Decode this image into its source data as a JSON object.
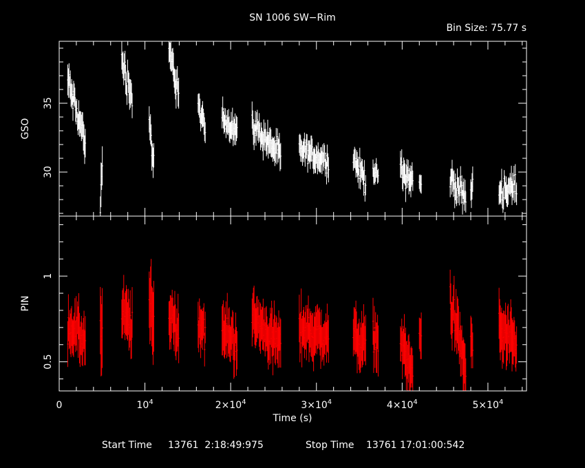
{
  "header": {
    "title": "SN 1006 SW−Rim",
    "bin_size": "Bin Size: 75.77 s"
  },
  "footer": {
    "start_label": "Start Time",
    "start_value": "13761  2:18:49:975",
    "stop_label": "Stop Time",
    "stop_value": "13761 17:01:00:542"
  },
  "colors": {
    "gso": "#ffffff",
    "pin": "#ff0000",
    "axes": "#ffffff",
    "background": "#000000"
  },
  "chart_data": [
    {
      "type": "scatter",
      "panel": "top",
      "title": "SN 1006 SW−Rim",
      "ylabel": "GSO",
      "xlim": [
        0,
        54500
      ],
      "ylim": [
        26.8,
        39.5
      ],
      "yticks": [
        30,
        35
      ],
      "ytick_labels": [
        "30",
        "35"
      ],
      "style": "vertical error bars",
      "series_color": "#ffffff",
      "segments": [
        {
          "t0": 1000,
          "t1": 3100,
          "v0": 36.6,
          "v1": 32.2,
          "noise": 0.9,
          "err": 0.9
        },
        {
          "t0": 4800,
          "t1": 5100,
          "v0": 27.5,
          "v1": 30.5,
          "noise": 0.6,
          "err": 1.3
        },
        {
          "t0": 7300,
          "t1": 8600,
          "v0": 38.2,
          "v1": 35.4,
          "noise": 0.9,
          "err": 0.9
        },
        {
          "t0": 10500,
          "t1": 11100,
          "v0": 33.8,
          "v1": 30.3,
          "noise": 0.8,
          "err": 0.9
        },
        {
          "t0": 12800,
          "t1": 14000,
          "v0": 38.6,
          "v1": 36.0,
          "noise": 0.9,
          "err": 0.9
        },
        {
          "t0": 16200,
          "t1": 17100,
          "v0": 34.8,
          "v1": 33.0,
          "noise": 0.5,
          "err": 0.8
        },
        {
          "t0": 19000,
          "t1": 20800,
          "v0": 34.0,
          "v1": 33.0,
          "noise": 0.6,
          "err": 0.8
        },
        {
          "t0": 22500,
          "t1": 25900,
          "v0": 33.5,
          "v1": 31.2,
          "noise": 0.7,
          "err": 0.8
        },
        {
          "t0": 28000,
          "t1": 31500,
          "v0": 31.6,
          "v1": 30.8,
          "noise": 0.6,
          "err": 0.8
        },
        {
          "t0": 34300,
          "t1": 35800,
          "v0": 30.9,
          "v1": 29.4,
          "noise": 0.7,
          "err": 0.8
        },
        {
          "t0": 36600,
          "t1": 37300,
          "v0": 30.2,
          "v1": 29.6,
          "noise": 0.4,
          "err": 0.6
        },
        {
          "t0": 39800,
          "t1": 41300,
          "v0": 30.2,
          "v1": 29.4,
          "noise": 0.8,
          "err": 0.8
        },
        {
          "t0": 42000,
          "t1": 42300,
          "v0": 29.2,
          "v1": 29.0,
          "noise": 0.3,
          "err": 0.6
        },
        {
          "t0": 45600,
          "t1": 47500,
          "v0": 29.6,
          "v1": 28.1,
          "noise": 0.7,
          "err": 0.8
        },
        {
          "t0": 48000,
          "t1": 48300,
          "v0": 28.4,
          "v1": 29.2,
          "noise": 0.4,
          "err": 0.8
        },
        {
          "t0": 51300,
          "t1": 53400,
          "v0": 28.7,
          "v1": 28.9,
          "noise": 0.8,
          "err": 0.8
        }
      ]
    },
    {
      "type": "scatter",
      "panel": "bottom",
      "ylabel": "PIN",
      "xlabel": "Time (s)",
      "xlim": [
        0,
        54500
      ],
      "ylim": [
        0.33,
        1.35
      ],
      "yticks": [
        0.5,
        1
      ],
      "ytick_labels": [
        "0.5",
        "1"
      ],
      "xticks": [
        0,
        10000,
        20000,
        30000,
        40000,
        50000
      ],
      "xtick_labels": [
        {
          "base": "0",
          "exp": ""
        },
        {
          "base": "10",
          "exp": "4"
        },
        {
          "base": "2×10",
          "exp": "4"
        },
        {
          "base": "3×10",
          "exp": "4"
        },
        {
          "base": "4×10",
          "exp": "4"
        },
        {
          "base": "5×10",
          "exp": "4"
        }
      ],
      "style": "vertical error bars",
      "series_color": "#ff0000",
      "segments": [
        {
          "t0": 1000,
          "t1": 3100,
          "v0": 0.72,
          "v1": 0.62,
          "noise": 0.08,
          "err": 0.12
        },
        {
          "t0": 4800,
          "t1": 5100,
          "v0": 0.72,
          "v1": 0.55,
          "noise": 0.15,
          "err": 0.25
        },
        {
          "t0": 7300,
          "t1": 8600,
          "v0": 0.78,
          "v1": 0.7,
          "noise": 0.09,
          "err": 0.13
        },
        {
          "t0": 10500,
          "t1": 11100,
          "v0": 0.85,
          "v1": 0.7,
          "noise": 0.1,
          "err": 0.18
        },
        {
          "t0": 12800,
          "t1": 14000,
          "v0": 0.8,
          "v1": 0.66,
          "noise": 0.09,
          "err": 0.13
        },
        {
          "t0": 16200,
          "t1": 17100,
          "v0": 0.75,
          "v1": 0.66,
          "noise": 0.08,
          "err": 0.12
        },
        {
          "t0": 19000,
          "t1": 20800,
          "v0": 0.68,
          "v1": 0.62,
          "noise": 0.08,
          "err": 0.12
        },
        {
          "t0": 22500,
          "t1": 25900,
          "v0": 0.75,
          "v1": 0.6,
          "noise": 0.08,
          "err": 0.12
        },
        {
          "t0": 28000,
          "t1": 31500,
          "v0": 0.7,
          "v1": 0.64,
          "noise": 0.08,
          "err": 0.12
        },
        {
          "t0": 34300,
          "t1": 35800,
          "v0": 0.66,
          "v1": 0.6,
          "noise": 0.08,
          "err": 0.12
        },
        {
          "t0": 36600,
          "t1": 37300,
          "v0": 0.66,
          "v1": 0.62,
          "noise": 0.07,
          "err": 0.12
        },
        {
          "t0": 39800,
          "t1": 41300,
          "v0": 0.62,
          "v1": 0.42,
          "noise": 0.08,
          "err": 0.12
        },
        {
          "t0": 42000,
          "t1": 42300,
          "v0": 0.7,
          "v1": 0.62,
          "noise": 0.08,
          "err": 0.12
        },
        {
          "t0": 45600,
          "t1": 47500,
          "v0": 0.85,
          "v1": 0.45,
          "noise": 0.09,
          "err": 0.13
        },
        {
          "t0": 48000,
          "t1": 48300,
          "v0": 0.58,
          "v1": 0.6,
          "noise": 0.08,
          "err": 0.12
        },
        {
          "t0": 51300,
          "t1": 53400,
          "v0": 0.7,
          "v1": 0.55,
          "noise": 0.09,
          "err": 0.13
        }
      ]
    }
  ]
}
